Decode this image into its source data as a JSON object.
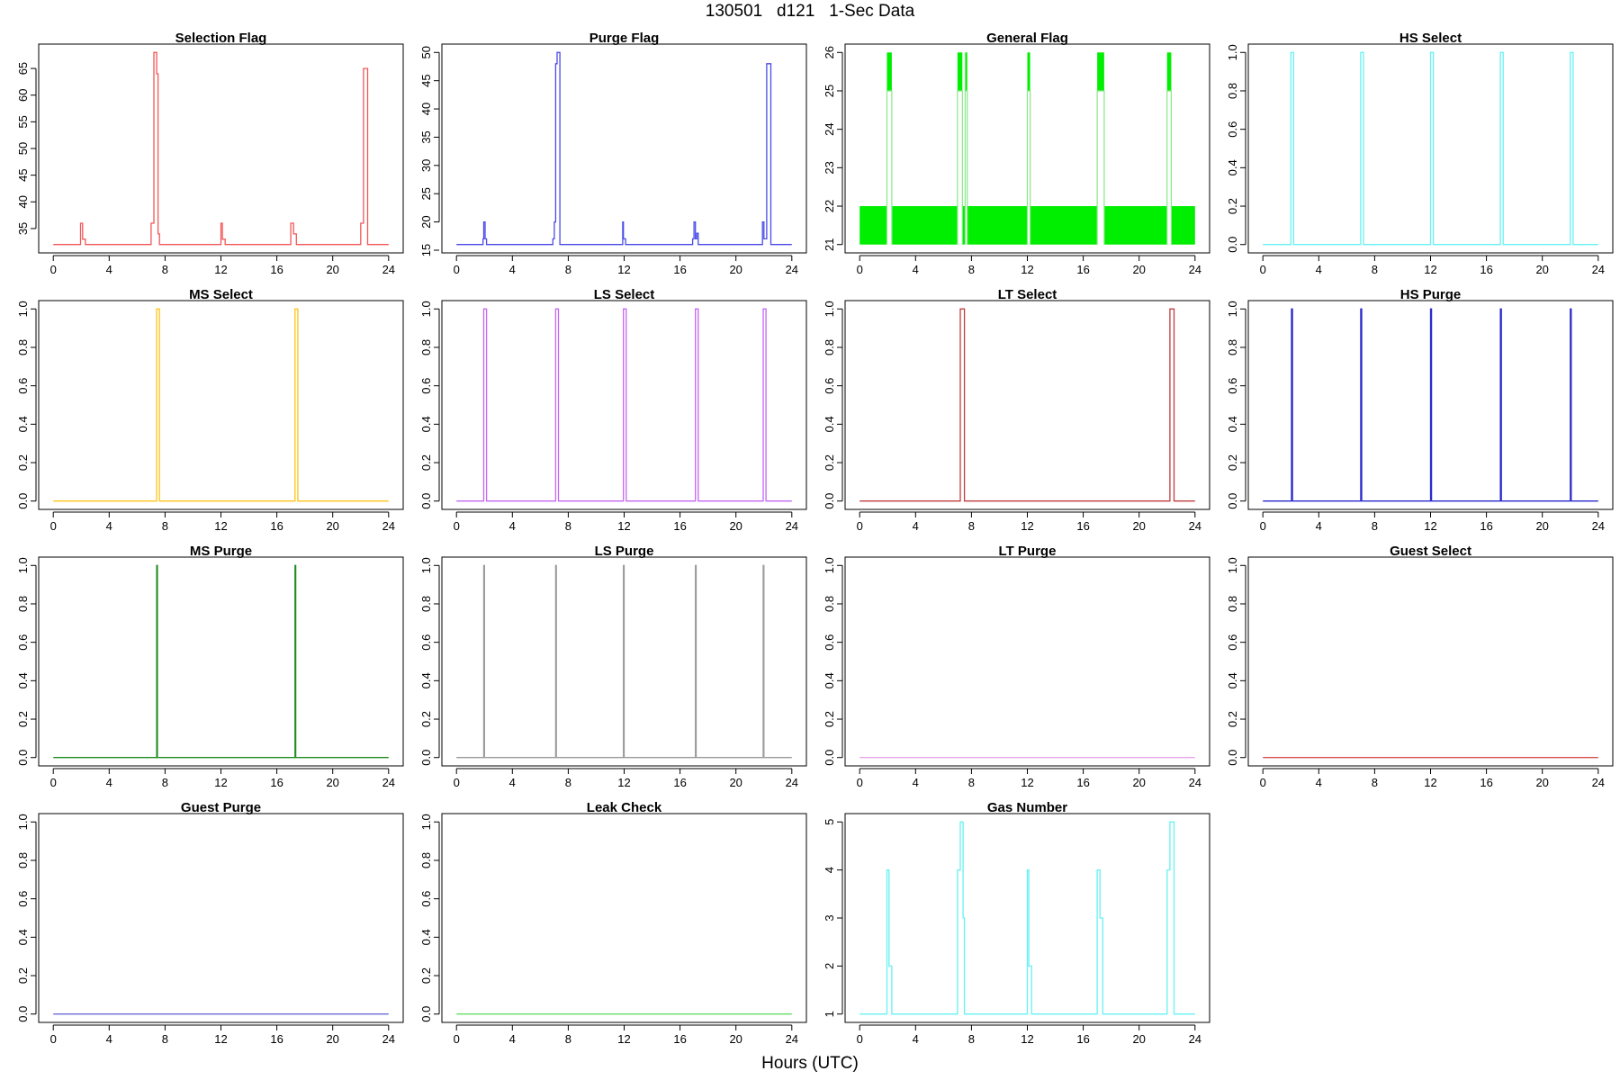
{
  "title": "130501   d121   1-Sec Data",
  "xlabel": "Hours (UTC)",
  "chart_data": [
    {
      "type": "line",
      "title": "Selection Flag",
      "color": "#f25757",
      "xlim": [
        0,
        24
      ],
      "ylim": [
        32,
        68
      ],
      "xticks": [
        0,
        4,
        8,
        12,
        16,
        20,
        24
      ],
      "yticks": [
        35,
        40,
        45,
        50,
        55,
        60,
        65
      ],
      "series": [
        {
          "x": [
            0,
            1.95,
            1.95,
            2.1,
            2.1,
            2.3,
            2.3,
            7.0,
            7.0,
            7.2,
            7.2,
            7.4,
            7.4,
            7.5,
            7.5,
            7.6,
            7.6,
            12.0,
            12.0,
            12.1,
            12.1,
            12.3,
            12.3,
            17.0,
            17.0,
            17.2,
            17.2,
            17.4,
            17.4,
            22.0,
            22.0,
            22.2,
            22.2,
            22.5,
            22.5,
            24
          ],
          "y": [
            32,
            32,
            36,
            36,
            33,
            33,
            32,
            32,
            36,
            36,
            68,
            68,
            64,
            64,
            34,
            34,
            32,
            32,
            36,
            36,
            33,
            33,
            32,
            32,
            36,
            36,
            34,
            34,
            32,
            32,
            36,
            36,
            65,
            65,
            32,
            32
          ]
        }
      ]
    },
    {
      "type": "line",
      "title": "Purge Flag",
      "color": "#4a4ae8",
      "xlim": [
        0,
        24
      ],
      "ylim": [
        16,
        50
      ],
      "xticks": [
        0,
        4,
        8,
        12,
        16,
        20,
        24
      ],
      "yticks": [
        15,
        20,
        25,
        30,
        35,
        40,
        45,
        50
      ],
      "series": [
        {
          "x": [
            0,
            1.9,
            1.9,
            1.95,
            1.95,
            2.05,
            2.05,
            2.1,
            2.1,
            2.15,
            2.15,
            6.9,
            6.9,
            7.0,
            7.0,
            7.1,
            7.1,
            7.2,
            7.2,
            7.4,
            7.4,
            7.5,
            7.5,
            11.9,
            11.9,
            11.95,
            11.95,
            12.1,
            12.1,
            16.9,
            16.9,
            17.0,
            17.0,
            17.1,
            17.1,
            17.2,
            17.2,
            17.3,
            17.3,
            21.9,
            21.9,
            22.0,
            22.0,
            22.2,
            22.2,
            22.5,
            22.5,
            24
          ],
          "y": [
            16,
            16,
            17,
            17,
            20,
            20,
            17,
            17,
            17,
            17,
            16,
            16,
            17,
            17,
            20,
            20,
            48,
            48,
            50,
            50,
            16,
            16,
            16,
            16,
            20,
            20,
            17,
            17,
            16,
            16,
            17,
            17,
            20,
            20,
            17,
            17,
            18,
            18,
            16,
            16,
            20,
            20,
            17,
            17,
            48,
            48,
            16,
            16
          ]
        }
      ]
    },
    {
      "type": "band",
      "title": "General Flag",
      "color": "#00ee00",
      "xlim": [
        0,
        24
      ],
      "ylim": [
        21,
        26
      ],
      "xticks": [
        0,
        4,
        8,
        12,
        16,
        20,
        24
      ],
      "yticks": [
        21,
        22,
        23,
        24,
        25,
        26
      ],
      "band": {
        "ymin": 21,
        "ymax": 22,
        "gaps": [
          [
            1.95,
            2.3
          ],
          [
            7.0,
            7.35
          ],
          [
            7.55,
            7.7
          ],
          [
            12.0,
            12.2
          ],
          [
            17.0,
            17.5
          ],
          [
            22.0,
            22.3
          ]
        ]
      },
      "spikes": [
        {
          "x0": 1.95,
          "x1": 2.3
        },
        {
          "x0": 7.0,
          "x1": 7.35
        },
        {
          "x0": 7.55,
          "x1": 7.7
        },
        {
          "x0": 12.0,
          "x1": 12.2
        },
        {
          "x0": 17.0,
          "x1": 17.5
        },
        {
          "x0": 22.0,
          "x1": 22.3
        }
      ]
    },
    {
      "type": "line",
      "title": "HS Select",
      "color": "#66f2f2",
      "xlim": [
        0,
        24
      ],
      "ylim": [
        0,
        1
      ],
      "xticks": [
        0,
        4,
        8,
        12,
        16,
        20,
        24
      ],
      "yticks": [
        0.0,
        0.2,
        0.4,
        0.6,
        0.8,
        1.0
      ],
      "series": [
        {
          "x": [
            0,
            2.0,
            2.0,
            2.2,
            2.2,
            7.0,
            7.0,
            7.2,
            7.2,
            12.0,
            12.0,
            12.2,
            12.2,
            17.0,
            17.0,
            17.2,
            17.2,
            22.0,
            22.0,
            22.2,
            22.2,
            24
          ],
          "y": [
            0,
            0,
            1,
            1,
            0,
            0,
            1,
            1,
            0,
            0,
            1,
            1,
            0,
            0,
            1,
            1,
            0,
            0,
            1,
            1,
            0,
            0
          ]
        }
      ]
    },
    {
      "type": "line",
      "title": "MS Select",
      "color": "#ffc419",
      "xlim": [
        0,
        24
      ],
      "ylim": [
        0,
        1
      ],
      "xticks": [
        0,
        4,
        8,
        12,
        16,
        20,
        24
      ],
      "yticks": [
        0.0,
        0.2,
        0.4,
        0.6,
        0.8,
        1.0
      ],
      "series": [
        {
          "x": [
            0,
            7.4,
            7.4,
            7.6,
            7.6,
            17.3,
            17.3,
            17.5,
            17.5,
            24
          ],
          "y": [
            0,
            0,
            1,
            1,
            0,
            0,
            1,
            1,
            0,
            0
          ]
        }
      ]
    },
    {
      "type": "line",
      "title": "LS Select",
      "color": "#c466f2",
      "xlim": [
        0,
        24
      ],
      "ylim": [
        0,
        1
      ],
      "xticks": [
        0,
        4,
        8,
        12,
        16,
        20,
        24
      ],
      "yticks": [
        0.0,
        0.2,
        0.4,
        0.6,
        0.8,
        1.0
      ],
      "series": [
        {
          "x": [
            0,
            1.95,
            1.95,
            2.15,
            2.15,
            7.1,
            7.1,
            7.3,
            7.3,
            11.95,
            11.95,
            12.15,
            12.15,
            17.1,
            17.1,
            17.3,
            17.3,
            21.95,
            21.95,
            22.15,
            22.15,
            24
          ],
          "y": [
            0,
            0,
            1,
            1,
            0,
            0,
            1,
            1,
            0,
            0,
            1,
            1,
            0,
            0,
            1,
            1,
            0,
            0,
            1,
            1,
            0,
            0
          ]
        }
      ]
    },
    {
      "type": "line",
      "title": "LT Select",
      "color": "#c03c3c",
      "xlim": [
        0,
        24
      ],
      "ylim": [
        0,
        1
      ],
      "xticks": [
        0,
        4,
        8,
        12,
        16,
        20,
        24
      ],
      "yticks": [
        0.0,
        0.2,
        0.4,
        0.6,
        0.8,
        1.0
      ],
      "series": [
        {
          "x": [
            0,
            7.2,
            7.2,
            7.5,
            7.5,
            22.2,
            22.2,
            22.5,
            22.5,
            24
          ],
          "y": [
            0,
            0,
            1,
            1,
            0,
            0,
            1,
            1,
            0,
            0
          ]
        }
      ]
    },
    {
      "type": "line",
      "title": "HS Purge",
      "color": "#2a2acc",
      "xlim": [
        0,
        24
      ],
      "ylim": [
        0,
        1
      ],
      "xticks": [
        0,
        4,
        8,
        12,
        16,
        20,
        24
      ],
      "yticks": [
        0.0,
        0.2,
        0.4,
        0.6,
        0.8,
        1.0
      ],
      "series": [
        {
          "x": [
            0,
            2.05,
            2.05,
            2.12,
            2.12,
            7.0,
            7.0,
            7.07,
            7.07,
            12.0,
            12.0,
            12.07,
            12.07,
            17.0,
            17.0,
            17.07,
            17.07,
            22.0,
            22.0,
            22.07,
            22.07,
            24
          ],
          "y": [
            0,
            0,
            1,
            1,
            0,
            0,
            1,
            1,
            0,
            0,
            1,
            1,
            0,
            0,
            1,
            1,
            0,
            0,
            1,
            1,
            0,
            0
          ]
        }
      ]
    },
    {
      "type": "line",
      "title": "MS Purge",
      "color": "#1f8c1f",
      "xlim": [
        0,
        24
      ],
      "ylim": [
        0,
        1
      ],
      "xticks": [
        0,
        4,
        8,
        12,
        16,
        20,
        24
      ],
      "yticks": [
        0.0,
        0.2,
        0.4,
        0.6,
        0.8,
        1.0
      ],
      "series": [
        {
          "x": [
            0,
            7.4,
            7.4,
            7.45,
            7.45,
            17.3,
            17.3,
            17.35,
            17.35,
            24
          ],
          "y": [
            0,
            0,
            1,
            1,
            0,
            0,
            1,
            1,
            0,
            0
          ]
        }
      ]
    },
    {
      "type": "line",
      "title": "LS Purge",
      "color": "#9a9a9a",
      "xlim": [
        0,
        24
      ],
      "ylim": [
        0,
        1
      ],
      "xticks": [
        0,
        4,
        8,
        12,
        16,
        20,
        24
      ],
      "yticks": [
        0.0,
        0.2,
        0.4,
        0.6,
        0.8,
        1.0
      ],
      "series": [
        {
          "x": [
            0,
            1.95,
            1.95,
            2.0,
            2.0,
            7.1,
            7.1,
            7.15,
            7.15,
            11.95,
            11.95,
            12.0,
            12.0,
            17.1,
            17.1,
            17.15,
            17.15,
            21.95,
            21.95,
            22.0,
            22.0,
            24
          ],
          "y": [
            0,
            0,
            1,
            1,
            0,
            0,
            1,
            1,
            0,
            0,
            1,
            1,
            0,
            0,
            1,
            1,
            0,
            0,
            1,
            1,
            0,
            0
          ]
        }
      ]
    },
    {
      "type": "line",
      "title": "LT Purge",
      "color": "#e8a8e8",
      "xlim": [
        0,
        24
      ],
      "ylim": [
        0,
        1
      ],
      "xticks": [
        0,
        4,
        8,
        12,
        16,
        20,
        24
      ],
      "yticks": [
        0.0,
        0.2,
        0.4,
        0.6,
        0.8,
        1.0
      ],
      "series": [
        {
          "x": [
            0,
            24
          ],
          "y": [
            0,
            0
          ]
        }
      ]
    },
    {
      "type": "line",
      "title": "Guest Select",
      "color": "#d85050",
      "xlim": [
        0,
        24
      ],
      "ylim": [
        0,
        1
      ],
      "xticks": [
        0,
        4,
        8,
        12,
        16,
        20,
        24
      ],
      "yticks": [
        0.0,
        0.2,
        0.4,
        0.6,
        0.8,
        1.0
      ],
      "series": [
        {
          "x": [
            0,
            24
          ],
          "y": [
            0,
            0
          ]
        }
      ]
    },
    {
      "type": "line",
      "title": "Guest Purge",
      "color": "#6a6ad8",
      "xlim": [
        0,
        24
      ],
      "ylim": [
        0,
        1
      ],
      "xticks": [
        0,
        4,
        8,
        12,
        16,
        20,
        24
      ],
      "yticks": [
        0.0,
        0.2,
        0.4,
        0.6,
        0.8,
        1.0
      ],
      "series": [
        {
          "x": [
            0,
            24
          ],
          "y": [
            0,
            0
          ]
        }
      ]
    },
    {
      "type": "line",
      "title": "Leak Check",
      "color": "#66dd66",
      "xlim": [
        0,
        24
      ],
      "ylim": [
        0,
        1
      ],
      "xticks": [
        0,
        4,
        8,
        12,
        16,
        20,
        24
      ],
      "yticks": [
        0.0,
        0.2,
        0.4,
        0.6,
        0.8,
        1.0
      ],
      "series": [
        {
          "x": [
            0,
            24
          ],
          "y": [
            0,
            0
          ]
        }
      ]
    },
    {
      "type": "line",
      "title": "Gas Number",
      "color": "#66f2f2",
      "xlim": [
        0,
        24
      ],
      "ylim": [
        1,
        5
      ],
      "xticks": [
        0,
        4,
        8,
        12,
        16,
        20,
        24
      ],
      "yticks": [
        1,
        2,
        3,
        4,
        5
      ],
      "series": [
        {
          "x": [
            0,
            1.95,
            1.95,
            2.1,
            2.1,
            2.3,
            2.3,
            7.0,
            7.0,
            7.2,
            7.2,
            7.4,
            7.4,
            7.5,
            7.5,
            7.6,
            7.6,
            12.0,
            12.0,
            12.1,
            12.1,
            12.3,
            12.3,
            17.0,
            17.0,
            17.2,
            17.2,
            17.4,
            17.4,
            22.0,
            22.0,
            22.2,
            22.2,
            22.5,
            22.5,
            24
          ],
          "y": [
            1,
            1,
            4,
            4,
            2,
            2,
            1,
            1,
            4,
            4,
            5,
            5,
            3,
            3,
            1,
            1,
            1,
            1,
            4,
            4,
            2,
            2,
            1,
            1,
            4,
            4,
            3,
            3,
            1,
            1,
            4,
            4,
            5,
            5,
            1,
            1
          ]
        }
      ]
    }
  ]
}
